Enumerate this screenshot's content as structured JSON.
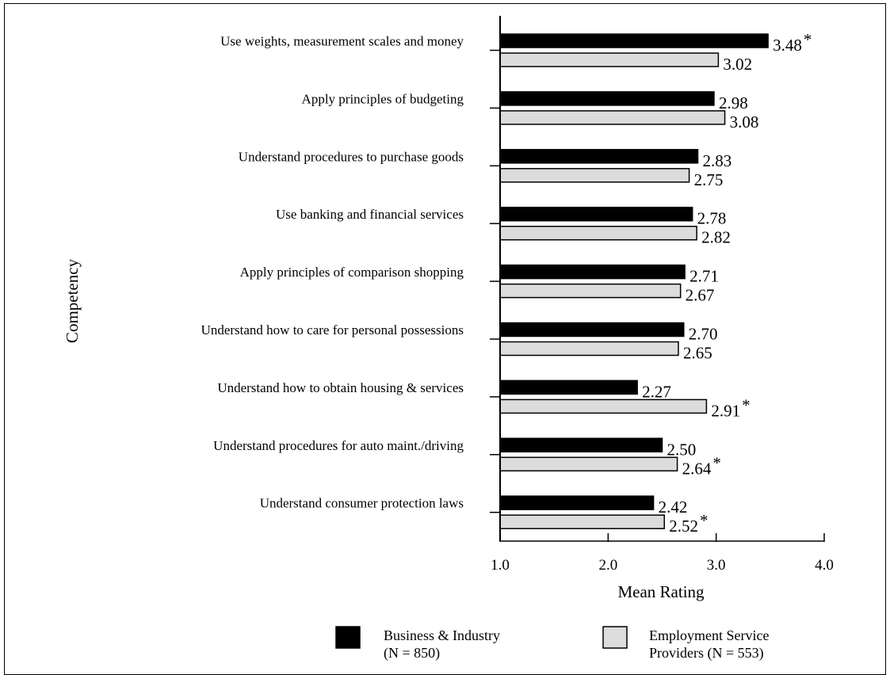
{
  "chart_data": {
    "type": "bar",
    "orientation": "horizontal",
    "xlabel": "Mean Rating",
    "ylabel": "Competency",
    "xlim": [
      1.0,
      4.0
    ],
    "xticks": [
      "1.0",
      "2.0",
      "3.0",
      "4.0"
    ],
    "categories": [
      "Use weights, measurement scales and money",
      "Apply principles of budgeting",
      "Understand procedures to purchase goods",
      "Use banking and financial services",
      "Apply principles of comparison shopping",
      "Understand how to care for personal possessions",
      "Understand how to obtain housing & services",
      "Understand procedures for auto maint./driving",
      "Understand consumer protection laws"
    ],
    "series": [
      {
        "name": "Business & Industry",
        "legend_line2": "(N = 850)",
        "color": "#000000",
        "values": [
          3.48,
          2.98,
          2.83,
          2.78,
          2.71,
          2.7,
          2.27,
          2.5,
          2.42
        ],
        "labels": [
          "3.48",
          "2.98",
          "2.83",
          "2.78",
          "2.71",
          "2.70",
          "2.27",
          "2.50",
          "2.42"
        ],
        "significant": [
          true,
          false,
          false,
          false,
          false,
          false,
          false,
          false,
          false
        ]
      },
      {
        "name": "Employment Service",
        "legend_line2": "Providers (N = 553)",
        "color": "#dcdcdc",
        "values": [
          3.02,
          3.08,
          2.75,
          2.82,
          2.67,
          2.65,
          2.91,
          2.64,
          2.52
        ],
        "labels": [
          "3.02",
          "3.08",
          "2.75",
          "2.82",
          "2.67",
          "2.65",
          "2.91",
          "2.64",
          "2.52"
        ],
        "significant": [
          false,
          false,
          false,
          false,
          false,
          false,
          true,
          true,
          true
        ]
      }
    ],
    "significance_marker": "*",
    "grid": false,
    "legend_position": "bottom"
  }
}
